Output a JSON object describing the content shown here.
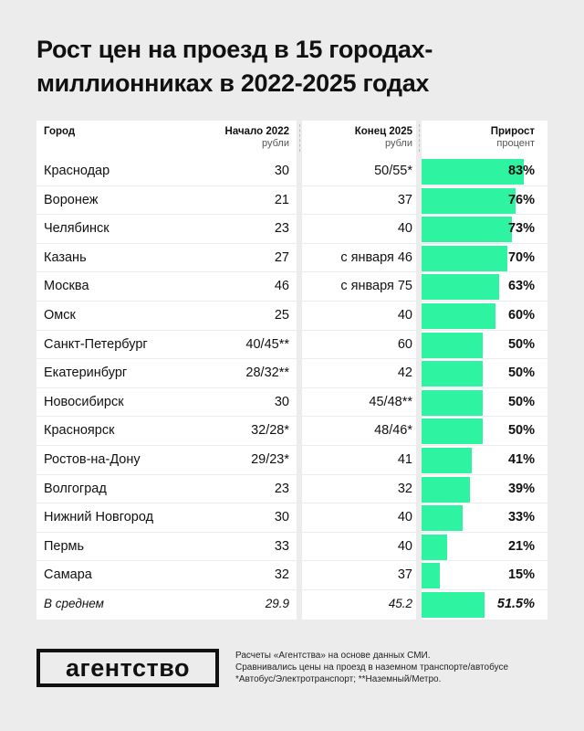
{
  "title": "Рост цен на проезд в 15 городах-миллионниках в 2022-2025 годах",
  "headers": {
    "city": "Город",
    "start": "Начало 2022",
    "start_unit": "рубли",
    "end": "Конец 2025",
    "end_unit": "рубли",
    "growth": "Прирост",
    "growth_unit": "процент"
  },
  "chart_data": {
    "type": "table",
    "accent_color": "#2ef3a0",
    "rows": [
      {
        "city": "Краснодар",
        "start": "30",
        "end": "50/55*",
        "growth": "83%",
        "growth_value": 83
      },
      {
        "city": "Воронеж",
        "start": "21",
        "end": "37",
        "growth": "76%",
        "growth_value": 76
      },
      {
        "city": "Челябинск",
        "start": "23",
        "end": "40",
        "growth": "73%",
        "growth_value": 73
      },
      {
        "city": "Казань",
        "start": "27",
        "end": "с января 46",
        "growth": "70%",
        "growth_value": 70
      },
      {
        "city": "Москва",
        "start": "46",
        "end": "с января 75",
        "growth": "63%",
        "growth_value": 63
      },
      {
        "city": "Омск",
        "start": "25",
        "end": "40",
        "growth": "60%",
        "growth_value": 60
      },
      {
        "city": "Санкт-Петербург",
        "start": "40/45**",
        "end": "60",
        "growth": "50%",
        "growth_value": 50
      },
      {
        "city": "Екатеринбург",
        "start": "28/32**",
        "end": "42",
        "growth": "50%",
        "growth_value": 50
      },
      {
        "city": "Новосибирск",
        "start": "30",
        "end": "45/48**",
        "growth": "50%",
        "growth_value": 50
      },
      {
        "city": "Красноярск",
        "start": "32/28*",
        "end": "48/46*",
        "growth": "50%",
        "growth_value": 50
      },
      {
        "city": "Ростов-на-Дону",
        "start": "29/23*",
        "end": "41",
        "growth": "41%",
        "growth_value": 41
      },
      {
        "city": "Волгоград",
        "start": "23",
        "end": "32",
        "growth": "39%",
        "growth_value": 39
      },
      {
        "city": "Нижний Новгород",
        "start": "30",
        "end": "40",
        "growth": "33%",
        "growth_value": 33
      },
      {
        "city": "Пермь",
        "start": "33",
        "end": "40",
        "growth": "21%",
        "growth_value": 21
      },
      {
        "city": "Самара",
        "start": "32",
        "end": "37",
        "growth": "15%",
        "growth_value": 15
      },
      {
        "city": "В среднем",
        "start": "29.9",
        "end": "45.2",
        "growth": "51.5%",
        "growth_value": 51.5,
        "average": true
      }
    ]
  },
  "logo": "агентство",
  "footnote": [
    "Расчеты «Агентства» на основе данных СМИ.",
    "Сравнивались цены на проезд в наземном транспорте/автобусе",
    "*Автобус/Электротранспорт; **Наземный/Метро."
  ]
}
